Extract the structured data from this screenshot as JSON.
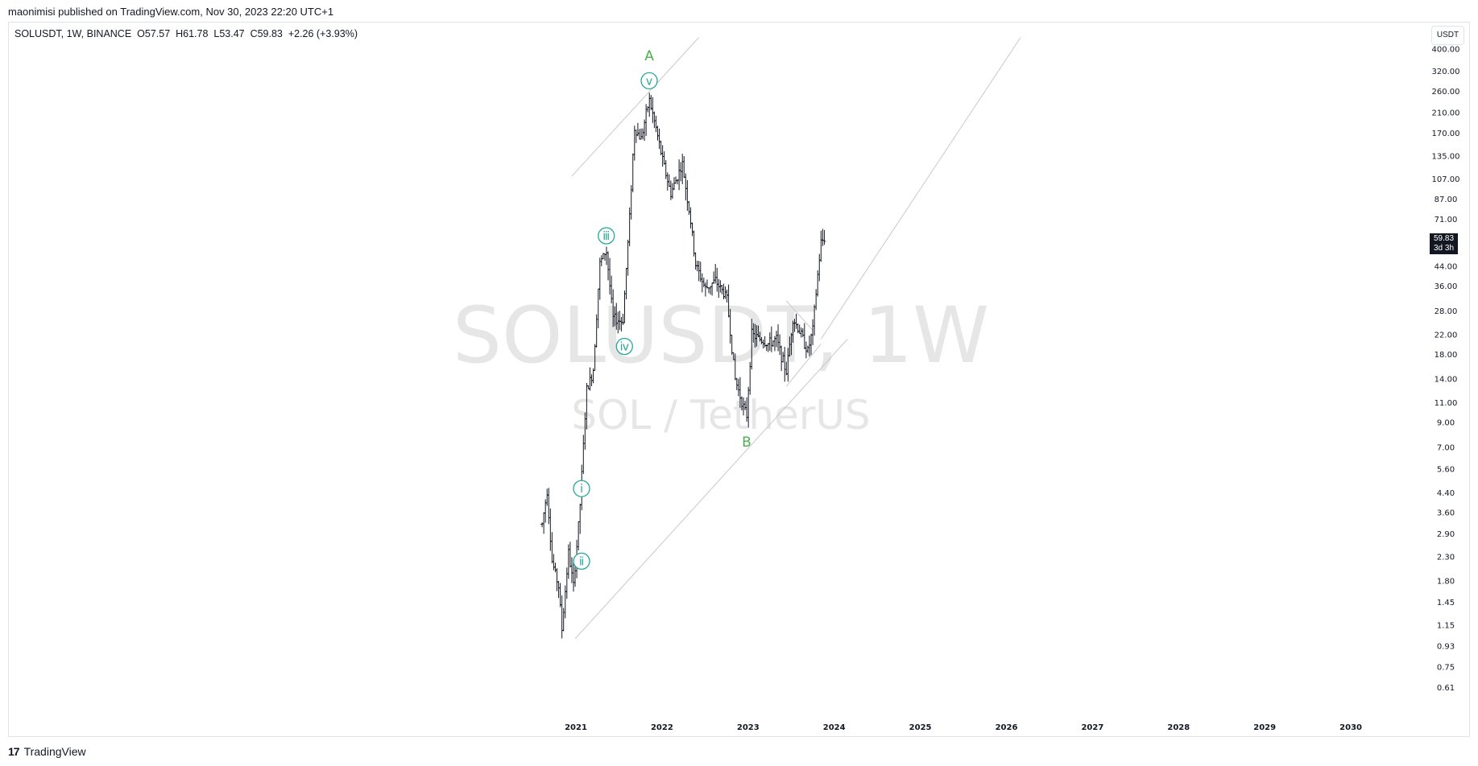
{
  "header": {
    "published": "maonimisi published on TradingView.com, Nov 30, 2023 22:20 UTC+1"
  },
  "legend": {
    "symbol": "SOLUSDT, 1W, BINANCE",
    "open": "O57.57",
    "high": "H61.78",
    "low": "L53.47",
    "close": "C59.83",
    "change": "+2.26 (+3.93%)"
  },
  "watermark": {
    "symbol": "SOLUSDT, 1W",
    "description": "SOL / TetherUS"
  },
  "currency_label": "USDT",
  "last_price": {
    "value": "59.83",
    "countdown": "3d 3h"
  },
  "footer": {
    "brand": "TradingView",
    "logo_glyph": "17"
  },
  "colors": {
    "wave": "#26a69a",
    "abc": "#4caf50",
    "candle": "#131722",
    "channel": "#c9c9c9"
  },
  "chart_data": {
    "type": "bar",
    "subtype": "weekly OHLC price bars, log scale",
    "symbol": "SOLUSDT",
    "interval": "1W",
    "yscale": "log",
    "ylim": [
      0.55,
      410
    ],
    "xlim": [
      "2020-08",
      "2030-12"
    ],
    "y_ticks": [
      "400.00",
      "320.00",
      "260.00",
      "210.00",
      "170.00",
      "135.00",
      "107.00",
      "87.00",
      "71.00",
      "44.00",
      "36.00",
      "28.00",
      "22.00",
      "18.00",
      "14.00",
      "11.00",
      "9.00",
      "7.00",
      "5.60",
      "4.40",
      "3.60",
      "2.90",
      "2.30",
      "1.80",
      "1.45",
      "1.15",
      "0.93",
      "0.75",
      "0.61"
    ],
    "x_ticks": [
      "2021",
      "2022",
      "2023",
      "2024",
      "2025",
      "2026",
      "2027",
      "2028",
      "2029",
      "2030"
    ],
    "path_keypoints": [
      {
        "t": "2020-08-10",
        "price": 3.2
      },
      {
        "t": "2020-08-31",
        "price": 4.5
      },
      {
        "t": "2020-09-21",
        "price": 2.2
      },
      {
        "t": "2020-10-19",
        "price": 1.7
      },
      {
        "t": "2020-11-02",
        "price": 1.1
      },
      {
        "t": "2020-11-30",
        "price": 2.4
      },
      {
        "t": "2020-12-21",
        "price": 1.7
      },
      {
        "t": "2021-01-18",
        "price": 3.8
      },
      {
        "t": "2021-02-15",
        "price": 12.5
      },
      {
        "t": "2021-03-15",
        "price": 15.0
      },
      {
        "t": "2021-04-12",
        "price": 45.0
      },
      {
        "t": "2021-05-10",
        "price": 52.0
      },
      {
        "t": "2021-06-07",
        "price": 26.0
      },
      {
        "t": "2021-07-19",
        "price": 25.0
      },
      {
        "t": "2021-08-16",
        "price": 70.0
      },
      {
        "t": "2021-09-06",
        "price": 180.0
      },
      {
        "t": "2021-10-04",
        "price": 160.0
      },
      {
        "t": "2021-11-08",
        "price": 240.0
      },
      {
        "t": "2021-12-06",
        "price": 180.0
      },
      {
        "t": "2022-01-03",
        "price": 130.0
      },
      {
        "t": "2022-02-07",
        "price": 92.0
      },
      {
        "t": "2022-03-28",
        "price": 125.0
      },
      {
        "t": "2022-05-02",
        "price": 70.0
      },
      {
        "t": "2022-05-23",
        "price": 45.0
      },
      {
        "t": "2022-07-04",
        "price": 35.0
      },
      {
        "t": "2022-08-15",
        "price": 38.0
      },
      {
        "t": "2022-10-03",
        "price": 32.0
      },
      {
        "t": "2022-11-07",
        "price": 14.0
      },
      {
        "t": "2022-12-26",
        "price": 9.5
      },
      {
        "t": "2023-01-16",
        "price": 22.0
      },
      {
        "t": "2023-02-20",
        "price": 21.0
      },
      {
        "t": "2023-03-27",
        "price": 20.0
      },
      {
        "t": "2023-05-01",
        "price": 21.0
      },
      {
        "t": "2023-06-12",
        "price": 15.0
      },
      {
        "t": "2023-07-10",
        "price": 26.0
      },
      {
        "t": "2023-08-14",
        "price": 22.0
      },
      {
        "t": "2023-09-11",
        "price": 18.5
      },
      {
        "t": "2023-10-02",
        "price": 23.0
      },
      {
        "t": "2023-10-23",
        "price": 40.0
      },
      {
        "t": "2023-11-06",
        "price": 56.0
      },
      {
        "t": "2023-11-27",
        "price": 59.83
      }
    ],
    "annotations": [
      {
        "label": "ⅰ",
        "t": "2021-01-25",
        "price": 4.6,
        "style": "wave"
      },
      {
        "label": "ⅱ",
        "t": "2021-01-25",
        "price": 2.2,
        "style": "wave"
      },
      {
        "label": "ⅲ",
        "t": "2021-05-10",
        "price": 60.0,
        "style": "wave"
      },
      {
        "label": "ⅳ",
        "t": "2021-07-26",
        "price": 19.5,
        "style": "wave"
      },
      {
        "label": "ⅴ",
        "t": "2021-11-08",
        "price": 290.0,
        "style": "wave"
      },
      {
        "label": "A",
        "t": "2021-11-08",
        "price": 375.0,
        "style": "abc"
      },
      {
        "label": "B",
        "t": "2022-12-26",
        "price": 7.4,
        "style": "abc"
      }
    ],
    "trend_lines": [
      {
        "from": {
          "t": "2020-12-28",
          "price": 1.0
        },
        "to": {
          "t": "2024-02-26",
          "price": 21.0
        }
      },
      {
        "from": {
          "t": "2020-12-14",
          "price": 110.0
        },
        "to": {
          "t": "2022-06-06",
          "price": 450.0
        }
      },
      {
        "from": {
          "t": "2023-11-06",
          "price": 21.0
        },
        "to": {
          "t": "2026-03-02",
          "price": 450.0
        }
      },
      {
        "from": {
          "t": "2023-06-12",
          "price": 13.0
        },
        "to": {
          "t": "2023-11-06",
          "price": 20.0
        }
      },
      {
        "from": {
          "t": "2023-06-12",
          "price": 31.0
        },
        "to": {
          "t": "2023-10-02",
          "price": 23.0
        }
      }
    ]
  }
}
